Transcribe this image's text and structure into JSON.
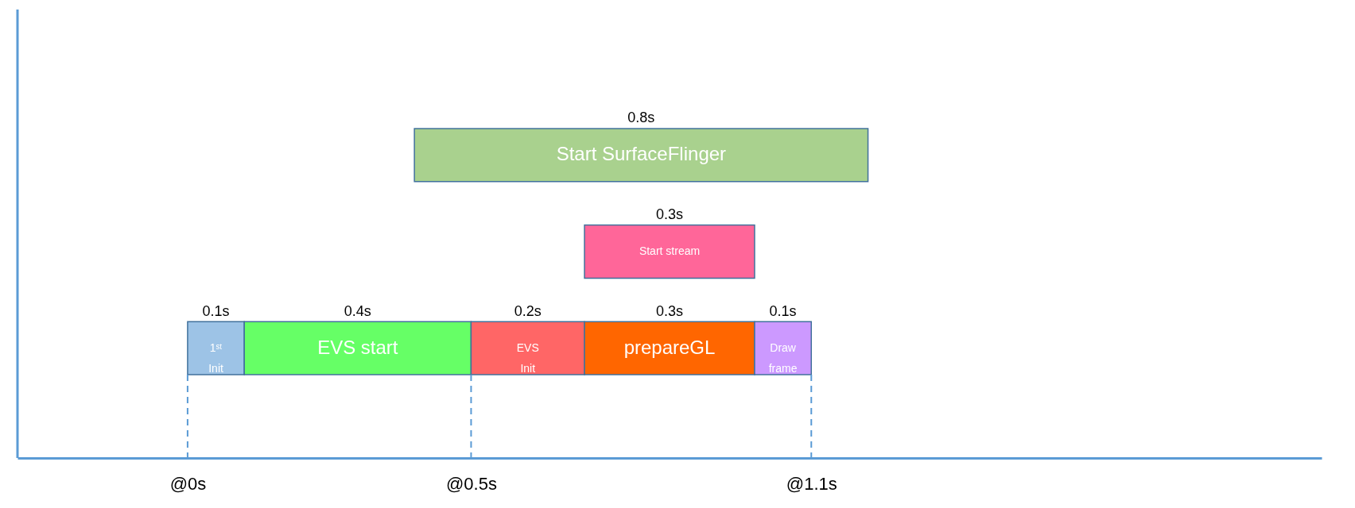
{
  "chart_data": {
    "type": "bar",
    "orientation": "horizontal",
    "categories": [
      null,
      null,
      null
    ],
    "series": [
      {
        "name": "Start SurfaceFlinger",
        "color": "#a9d18e",
        "values": [
          0.8,
          null,
          null
        ],
        "base": [
          0.4,
          null,
          null
        ],
        "value_labels": [
          "0.8s",
          null,
          null
        ]
      },
      {
        "name": "Start stream",
        "color": "#ff6699",
        "values": [
          null,
          0.3,
          null
        ],
        "base": [
          null,
          0.7,
          null
        ],
        "value_labels": [
          null,
          "0.3s",
          null
        ]
      },
      {
        "name": "1ˢᵗ Init",
        "color": "#9dc3e6",
        "values": [
          null,
          null,
          0.1
        ],
        "base": [
          null,
          null,
          0
        ],
        "value_labels": [
          null,
          null,
          "0.1s"
        ]
      },
      {
        "name": "EVS start",
        "color": "#66ff66",
        "values": [
          null,
          null,
          0.4
        ],
        "base": [
          null,
          null,
          0.1
        ],
        "value_labels": [
          null,
          null,
          "0.4s"
        ]
      },
      {
        "name": "EVS Init",
        "color": "#ff6666",
        "values": [
          null,
          null,
          0.2
        ],
        "base": [
          null,
          null,
          0.5
        ],
        "value_labels": [
          null,
          null,
          "0.2s"
        ]
      },
      {
        "name": "prepareGL",
        "color": "#ff6600",
        "values": [
          null,
          null,
          0.3
        ],
        "base": [
          null,
          null,
          0.7
        ],
        "value_labels": [
          null,
          null,
          "0.3s"
        ]
      },
      {
        "name": "Draw frame",
        "color": "#cc99ff",
        "values": [
          null,
          null,
          0.1
        ],
        "base": [
          null,
          null,
          1.0
        ],
        "value_labels": [
          null,
          null,
          "0.1s"
        ]
      }
    ],
    "xlim": [
      -0.3,
      2.0
    ],
    "xticks": [
      {
        "value": 0,
        "label": "@0s"
      },
      {
        "value": 0.5,
        "label": "@0.5s"
      },
      {
        "value": 1.1,
        "label": "@1.1s"
      }
    ],
    "ref_lines": [
      {
        "axis": "x",
        "value": 0,
        "label": null,
        "line_style": "dashed",
        "color": "#5b9bd5"
      },
      {
        "axis": "x",
        "value": 0.5,
        "label": null,
        "line_style": "dashed",
        "color": "#5b9bd5"
      },
      {
        "axis": "x",
        "value": 1.1,
        "label": null,
        "line_style": "dashed",
        "color": "#5b9bd5"
      }
    ],
    "tick_labels": "x",
    "grid": false,
    "legend": false
  }
}
